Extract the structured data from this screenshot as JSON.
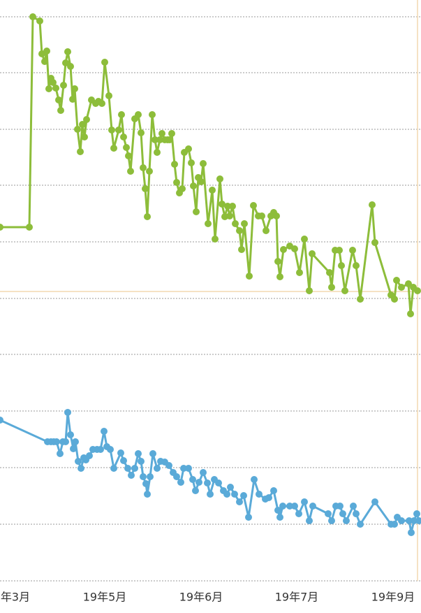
{
  "chart_data": {
    "type": "line",
    "xlim": [
      0,
      603
    ],
    "ylim": [
      0,
      831
    ],
    "xticks": [
      {
        "value": 22,
        "label": "年3月"
      },
      {
        "value": 150,
        "label": "19年5月"
      },
      {
        "value": 288,
        "label": "19年6月"
      },
      {
        "value": 425,
        "label": "19年7月"
      },
      {
        "value": 563,
        "label": "19年9月"
      }
    ],
    "yticks": [
      0,
      81,
      162,
      243,
      324,
      404,
      485,
      566,
      646,
      727,
      807
    ],
    "grid": true,
    "reference": {
      "y": 414,
      "x": 598,
      "color": "#f3d9b0"
    },
    "series": [
      {
        "color": "#8dbd3a",
        "x": [
          0,
          42,
          47,
          57,
          60,
          64,
          67,
          70,
          73,
          76,
          80,
          84,
          87,
          91,
          94,
          97,
          101,
          104,
          107,
          111,
          115,
          118,
          121,
          124,
          131,
          137,
          141,
          146,
          150,
          156,
          160,
          163,
          170,
          174,
          177,
          181,
          184,
          187,
          193,
          198,
          202,
          205,
          208,
          211,
          214,
          218,
          222,
          225,
          229,
          232,
          236,
          240,
          243,
          246,
          250,
          253,
          257,
          261,
          264,
          270,
          274,
          277,
          281,
          284,
          288,
          291,
          298,
          304,
          308,
          315,
          318,
          322,
          326,
          329,
          333,
          337,
          343,
          346,
          350,
          357,
          363,
          370,
          375,
          381,
          388,
          392,
          396,
          398,
          401,
          406,
          415,
          422,
          429,
          436,
          443,
          447,
          472,
          475,
          480,
          486,
          489,
          494,
          505,
          510,
          516,
          533,
          537,
          560,
          565,
          568,
          575,
          585,
          588,
          592,
          598
        ],
        "values": [
          506,
          506,
          807,
          801,
          754,
          743,
          758,
          704,
          719,
          713,
          705,
          688,
          673,
          709,
          741,
          757,
          736,
          689,
          704,
          646,
          614,
          653,
          635,
          660,
          688,
          683,
          686,
          683,
          742,
          694,
          645,
          619,
          645,
          667,
          635,
          620,
          608,
          586,
          661,
          667,
          641,
          591,
          561,
          521,
          586,
          667,
          631,
          613,
          631,
          640,
          631,
          631,
          631,
          640,
          596,
          570,
          555,
          561,
          613,
          618,
          598,
          565,
          528,
          577,
          571,
          597,
          511,
          559,
          489,
          575,
          539,
          521,
          536,
          522,
          536,
          511,
          501,
          474,
          511,
          436,
          537,
          522,
          522,
          501,
          522,
          527,
          522,
          457,
          435,
          474,
          479,
          475,
          441,
          489,
          415,
          468,
          441,
          420,
          473,
          473,
          451,
          415,
          473,
          451,
          403,
          538,
          484,
          409,
          403,
          430,
          420,
          425,
          382,
          420,
          415
        ]
      },
      {
        "color": "#5aaad8",
        "x": [
          0,
          68,
          73,
          77,
          81,
          86,
          90,
          94,
          97,
          101,
          105,
          108,
          112,
          116,
          120,
          123,
          128,
          133,
          139,
          144,
          149,
          153,
          158,
          163,
          173,
          177,
          183,
          188,
          193,
          198,
          202,
          205,
          209,
          211,
          215,
          219,
          225,
          230,
          236,
          242,
          248,
          253,
          259,
          263,
          270,
          276,
          280,
          285,
          291,
          297,
          301,
          307,
          313,
          320,
          325,
          330,
          336,
          343,
          349,
          356,
          364,
          371,
          380,
          385,
          392,
          398,
          401,
          405,
          415,
          422,
          428,
          436,
          443,
          448,
          470,
          475,
          481,
          487,
          491,
          496,
          506,
          510,
          516,
          537,
          560,
          565,
          569,
          575,
          586,
          589,
          593,
          597,
          600
        ],
        "values": [
          230,
          199,
          199,
          199,
          199,
          182,
          199,
          199,
          241,
          209,
          189,
          199,
          171,
          161,
          176,
          173,
          179,
          188,
          188,
          188,
          214,
          192,
          188,
          161,
          183,
          172,
          161,
          151,
          161,
          182,
          171,
          149,
          139,
          124,
          149,
          182,
          161,
          171,
          170,
          165,
          155,
          149,
          141,
          161,
          161,
          145,
          129,
          141,
          155,
          140,
          124,
          145,
          140,
          129,
          124,
          134,
          124,
          113,
          122,
          91,
          145,
          124,
          117,
          119,
          129,
          101,
          91,
          107,
          107,
          107,
          96,
          113,
          86,
          107,
          96,
          86,
          107,
          107,
          96,
          86,
          107,
          96,
          81,
          113,
          81,
          81,
          91,
          86,
          86,
          69,
          86,
          96,
          86
        ]
      }
    ]
  }
}
